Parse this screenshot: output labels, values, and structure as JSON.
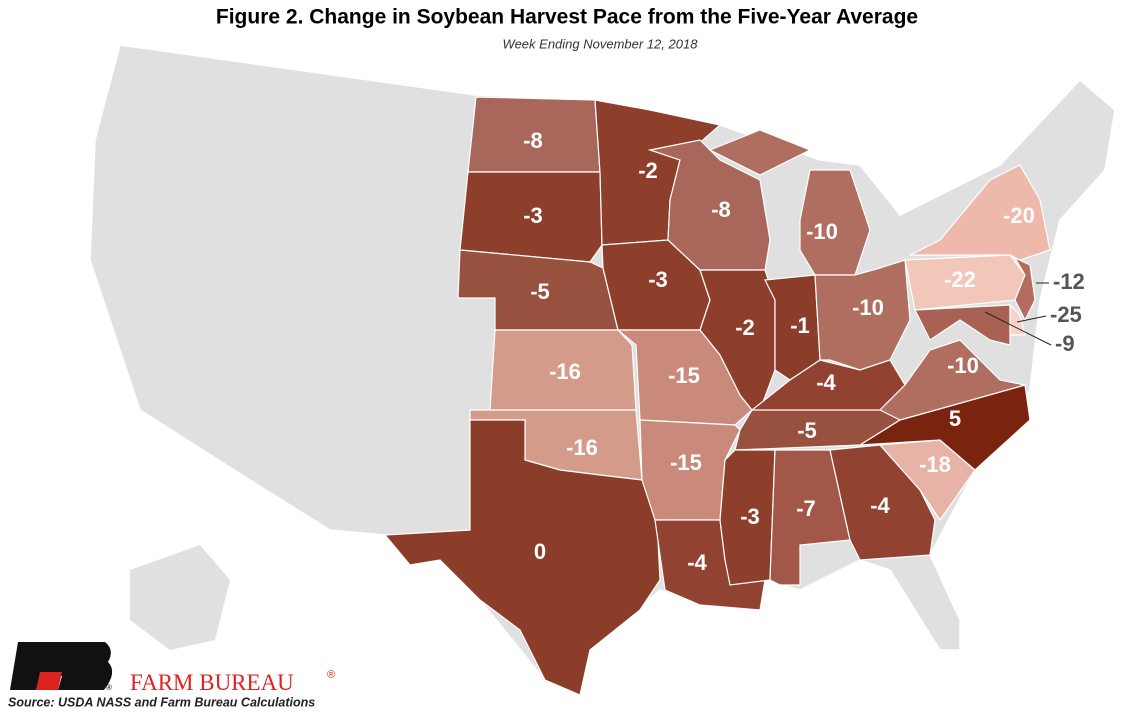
{
  "title": "Figure 2. Change in Soybean Harvest Pace from the Five-Year Average",
  "subtitle": "Week Ending November 12, 2018",
  "regions": [
    {
      "value": -8,
      "color": "#a8675a"
    },
    {
      "value": -3,
      "color": "#8e3f2c"
    },
    {
      "value": -5,
      "color": "#98503f"
    },
    {
      "value": -16,
      "color": "#d49a8a"
    },
    {
      "value": -16,
      "color": "#d49a8a"
    },
    {
      "value": 0,
      "color": "#8b3d2a"
    },
    {
      "value": -2,
      "color": "#8e3f2c"
    },
    {
      "value": -3,
      "color": "#8e3f2c"
    },
    {
      "value": -15,
      "color": "#c98a7b"
    },
    {
      "value": -15,
      "color": "#c98a7b"
    },
    {
      "value": -4,
      "color": "#914231"
    },
    {
      "value": -8,
      "color": "#a8675a"
    },
    {
      "value": -2,
      "color": "#8e3f2c"
    },
    {
      "value": -1,
      "color": "#8b3d2a"
    },
    {
      "value": -10,
      "color": "#b06e61"
    },
    {
      "value": -10,
      "color": "#b06e61"
    },
    {
      "value": -4,
      "color": "#914231"
    },
    {
      "value": -5,
      "color": "#98503f"
    },
    {
      "value": -3,
      "color": "#8e3f2c"
    },
    {
      "value": -7,
      "color": "#a25749"
    },
    {
      "value": -4,
      "color": "#914231"
    },
    {
      "value": -18,
      "color": "#e8b3a7"
    },
    {
      "value": 5,
      "color": "#7a2410"
    },
    {
      "value": -10,
      "color": "#b06e61"
    },
    {
      "value": -22,
      "color": "#f3c6ba"
    },
    {
      "value": -20,
      "color": "#eeb9aa"
    },
    {
      "value": -12,
      "color": "#b36c5e"
    },
    {
      "value": -9,
      "color": "#a86153"
    },
    {
      "value": -25,
      "color": "#f7d3c9"
    }
  ],
  "logo": {
    "name": "FARM BUREAU",
    "mark": "®"
  },
  "source": "Source: USDA NASS and Farm Bureau Calculations"
}
